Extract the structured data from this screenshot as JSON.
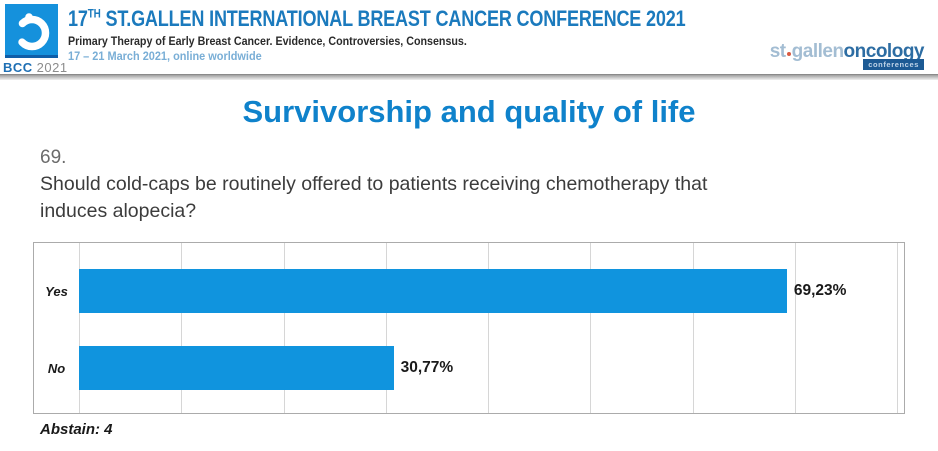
{
  "header": {
    "logo": {
      "badge_bcc": "BCC",
      "badge_year": "2021"
    },
    "title_num": "17",
    "title_sup": "TH",
    "title_rest": " ST.GALLEN INTERNATIONAL BREAST CANCER CONFERENCE 2021",
    "subtitle": "Primary Therapy of Early Breast Cancer. Evidence, Controversies, Consensus.",
    "date_line": "17 – 21 March 2021, online worldwide",
    "right_logo": {
      "part1": "st",
      "part2": "gallen",
      "part3": "oncology",
      "badge": "conferences"
    }
  },
  "slide": {
    "title": "Survivorship and quality of life",
    "question_number": "69.",
    "question_lines": [
      "Should cold-caps be routinely offered to patients receiving chemotherapy that",
      "induces alopecia?"
    ],
    "abstain": "Abstain: 4"
  },
  "chart_data": {
    "type": "bar",
    "orientation": "horizontal",
    "categories": [
      "Yes",
      "No"
    ],
    "values": [
      69.23,
      30.77
    ],
    "value_labels": [
      "69,23%",
      "30,77%"
    ],
    "title": "",
    "xlabel": "",
    "ylabel": "",
    "xlim": [
      0,
      80
    ],
    "grid_step": 10,
    "grid": true,
    "legend": false,
    "annotation": "Abstain: 4",
    "bar_color": "#1094de"
  },
  "colors": {
    "header_blue": "#1b7abd",
    "title_blue": "#0f82cb",
    "bar_blue": "#1094de",
    "date_blue": "#79aed6",
    "logo_square_blue": "#1591dc",
    "badge_blue": "#1c5a94",
    "orange_dot": "#d95b43"
  }
}
